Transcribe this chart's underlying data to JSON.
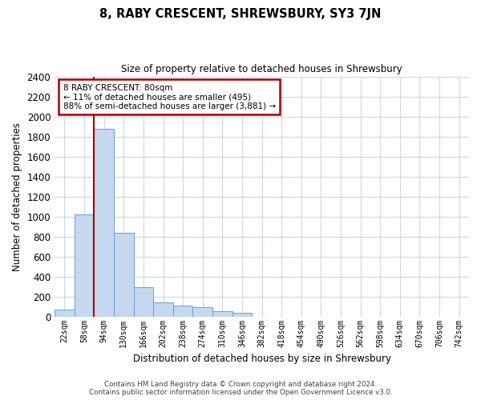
{
  "title": "8, RABY CRESCENT, SHREWSBURY, SY3 7JN",
  "subtitle": "Size of property relative to detached houses in Shrewsbury",
  "xlabel": "Distribution of detached houses by size in Shrewsbury",
  "ylabel": "Number of detached properties",
  "footer_line1": "Contains HM Land Registry data © Crown copyright and database right 2024.",
  "footer_line2": "Contains public sector information licensed under the Open Government Licence v3.0.",
  "annotation_title": "8 RABY CRESCENT: 80sqm",
  "annotation_line2": "← 11% of detached houses are smaller (495)",
  "annotation_line3": "88% of semi-detached houses are larger (3,881) →",
  "bar_color": "#c5d8f0",
  "bar_edge_color": "#6a9fd8",
  "redline_color": "#aa0000",
  "annotation_box_edgecolor": "#aa0000",
  "background_color": "#ffffff",
  "grid_color": "#c8d8ea",
  "categories": [
    "22sqm",
    "58sqm",
    "94sqm",
    "130sqm",
    "166sqm",
    "202sqm",
    "238sqm",
    "274sqm",
    "310sqm",
    "346sqm",
    "382sqm",
    "418sqm",
    "454sqm",
    "490sqm",
    "526sqm",
    "562sqm",
    "598sqm",
    "634sqm",
    "670sqm",
    "706sqm",
    "742sqm"
  ],
  "bar_values": [
    70,
    1020,
    1880,
    840,
    295,
    140,
    110,
    95,
    55,
    35,
    0,
    0,
    0,
    0,
    0,
    0,
    0,
    0,
    0,
    0,
    0
  ],
  "red_line_bar_index": 1.5,
  "ylim": [
    0,
    2400
  ],
  "yticks": [
    0,
    200,
    400,
    600,
    800,
    1000,
    1200,
    1400,
    1600,
    1800,
    2000,
    2200,
    2400
  ],
  "figsize": [
    6.0,
    5.0
  ],
  "dpi": 100
}
